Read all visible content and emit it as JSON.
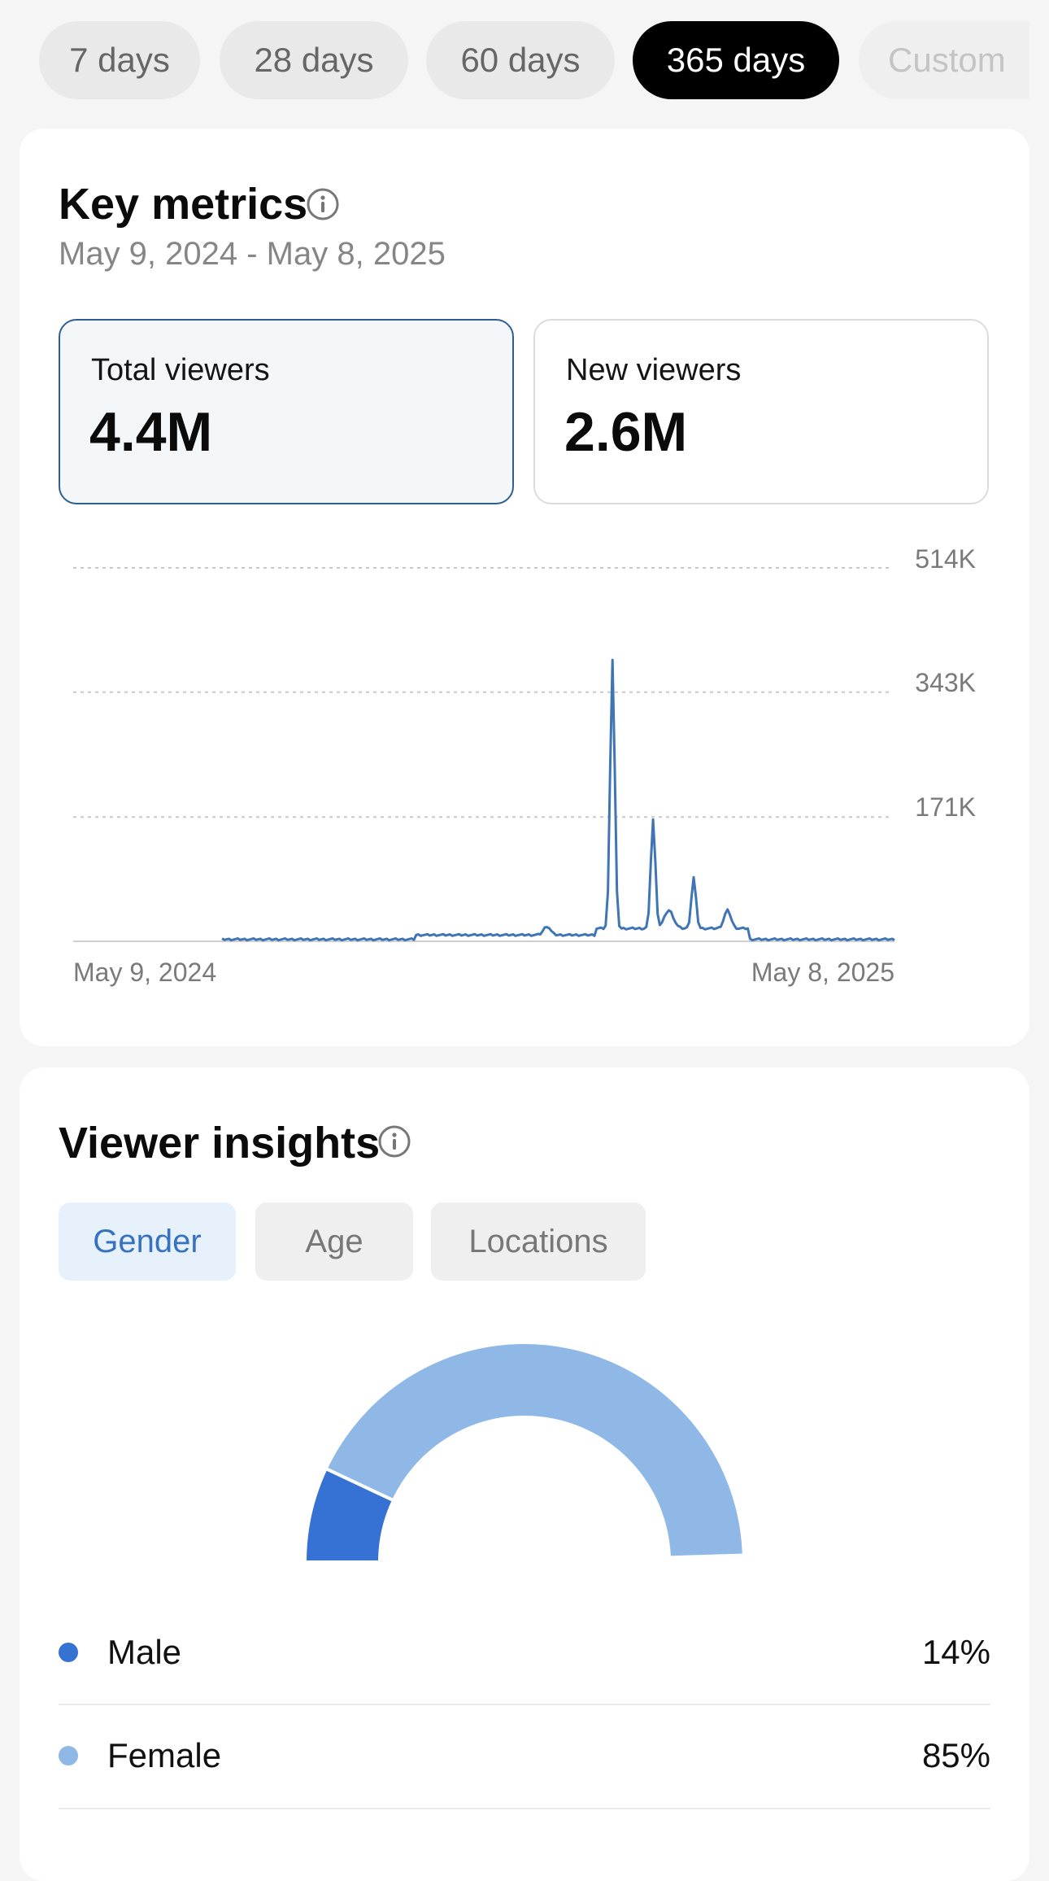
{
  "period_chips": [
    {
      "label": "7 days",
      "active": false
    },
    {
      "label": "28 days",
      "active": false
    },
    {
      "label": "60 days",
      "active": false
    },
    {
      "label": "365 days",
      "active": true
    },
    {
      "label": "Custom",
      "active": false
    }
  ],
  "key_metrics": {
    "title": "Key metrics",
    "date_range": "May 9, 2024 - May 8, 2025",
    "cards": [
      {
        "label": "Total viewers",
        "value": "4.4M",
        "selected": true
      },
      {
        "label": "New viewers",
        "value": "2.6M",
        "selected": false
      }
    ]
  },
  "chart_data": {
    "type": "line",
    "title": "",
    "xlabel": "",
    "ylabel": "",
    "x_tick_labels": [
      "May 9, 2024",
      "May 8, 2025"
    ],
    "y_tick_labels": [
      "514K",
      "343K",
      "171K"
    ],
    "ylim": [
      0,
      514000
    ],
    "grid": true,
    "color": "#3f74b5",
    "series": [
      {
        "values": [
          0,
          0,
          0,
          0,
          0,
          0,
          0,
          0,
          0,
          0,
          0,
          0,
          0,
          0,
          0,
          0,
          0,
          0,
          0,
          0,
          0,
          0,
          0,
          0,
          0,
          0,
          0,
          0,
          0,
          0,
          0,
          0,
          0,
          0,
          0,
          0,
          0,
          0,
          0,
          0,
          0,
          0,
          0,
          0,
          0,
          0,
          0,
          0,
          0,
          0,
          0,
          0,
          0,
          0,
          0,
          0,
          0,
          0,
          0,
          0,
          0,
          0,
          0,
          0,
          0,
          0,
          0,
          0,
          0,
          0,
          0,
          0,
          0,
          0,
          0,
          0,
          0,
          0,
          0,
          0,
          0,
          0,
          0,
          0,
          0,
          0,
          0,
          0,
          0,
          0,
          0,
          0,
          0,
          0,
          0,
          0,
          0,
          0,
          0,
          0,
          0,
          0,
          0,
          0,
          0,
          0,
          0,
          0,
          0,
          0,
          0,
          0,
          0,
          0,
          0,
          0,
          0,
          0,
          0,
          0,
          0,
          0,
          0,
          0,
          0,
          0,
          0,
          0,
          0,
          0,
          0,
          0,
          0,
          0,
          0,
          0,
          0,
          0,
          0,
          0,
          0,
          0,
          0,
          0,
          0,
          0,
          0,
          0,
          0,
          0,
          0,
          0,
          0,
          0,
          0,
          0,
          0,
          0,
          0,
          0,
          0,
          0,
          0,
          0,
          0,
          0,
          0,
          0,
          0,
          0,
          0,
          0,
          0,
          0,
          0,
          0,
          0,
          0,
          0,
          0,
          0,
          0,
          0,
          0,
          0,
          0,
          0,
          0,
          0,
          0,
          0,
          0,
          0,
          0,
          0,
          0,
          0,
          0,
          0,
          0,
          0,
          0,
          0,
          0,
          0,
          0,
          0,
          0,
          0,
          0,
          0,
          0,
          0,
          0,
          0,
          0,
          0,
          0,
          0,
          0,
          0,
          0,
          0,
          0,
          0,
          0,
          0,
          0,
          0,
          0,
          0,
          0,
          0,
          0,
          0,
          0,
          0,
          0,
          0,
          0,
          0,
          0,
          0,
          0,
          0,
          0,
          0,
          0,
          0,
          0,
          0,
          0,
          0,
          0,
          0,
          0,
          0,
          0,
          0,
          0,
          0,
          0,
          0,
          0,
          0,
          0,
          0,
          0,
          0,
          0,
          0,
          0,
          0,
          0,
          0,
          0,
          0,
          0,
          0,
          0,
          0,
          0,
          0,
          0,
          0,
          0,
          0,
          0,
          0,
          0,
          0,
          0,
          0,
          0,
          0,
          0,
          0,
          0,
          0,
          0,
          0,
          0,
          0,
          0,
          0,
          0,
          0,
          0,
          0,
          0,
          0,
          0,
          0,
          0,
          0,
          0,
          0,
          0,
          0,
          0,
          0,
          0,
          0,
          0,
          0,
          0,
          0,
          0,
          0,
          0,
          0,
          0,
          0,
          0,
          0,
          0,
          0,
          0,
          0,
          0,
          0,
          0,
          0,
          0,
          0,
          0,
          0,
          0,
          0,
          0,
          0,
          0,
          0,
          0,
          0,
          0,
          0,
          0,
          0,
          0,
          0,
          0
        ]
      }
    ]
  },
  "viewer_insights": {
    "title": "Viewer insights",
    "tabs": [
      {
        "label": "Gender",
        "active": true
      },
      {
        "label": "Age",
        "active": false
      },
      {
        "label": "Locations",
        "active": false
      }
    ],
    "gender_chart": {
      "type": "pie",
      "categories": [
        "Male",
        "Female"
      ],
      "values": [
        14,
        85
      ],
      "colors": [
        "#3672d3",
        "#8fb8e6"
      ]
    },
    "legend": [
      {
        "label": "Male",
        "value": "14%",
        "color": "#3672d3"
      },
      {
        "label": "Female",
        "value": "85%",
        "color": "#8fb8e6"
      }
    ]
  }
}
